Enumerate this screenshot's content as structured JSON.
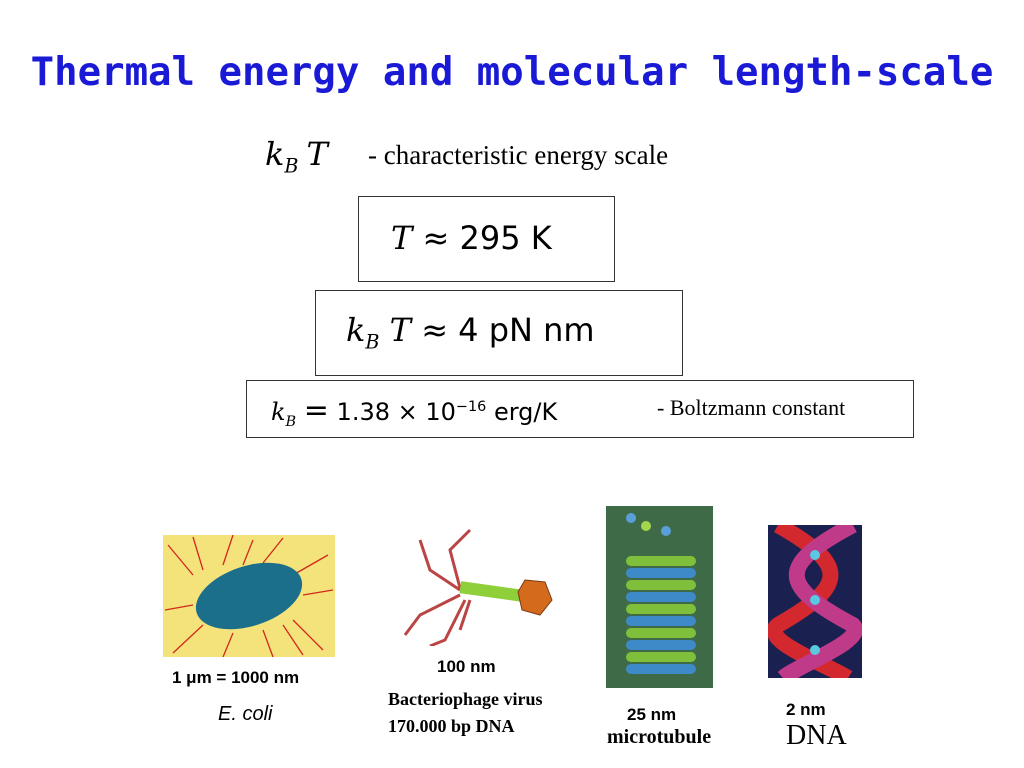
{
  "title": "Thermal energy and molecular length-scale",
  "energy_scale": {
    "k": "k",
    "sub": "B",
    "T": "T",
    "note": "- characteristic energy scale"
  },
  "temperature": {
    "T": "T",
    "approx": "≈",
    "value": "295 K"
  },
  "thermal_energy": {
    "k": "k",
    "sub": "B",
    "T": "T",
    "approx": "≈",
    "value": "4 pN nm"
  },
  "boltzmann": {
    "k": "k",
    "sub": "B",
    "eq": "=",
    "mantissa": "1.38",
    "times": "×",
    "base": "10",
    "exponent": "−16",
    "unit": "erg/K",
    "note": "- Boltzmann constant"
  },
  "examples": [
    {
      "size": "1 μm = 1000 nm",
      "name": "E. coli"
    },
    {
      "size": "100 nm",
      "name": "Bacteriophage virus",
      "detail": "170.000 bp DNA"
    },
    {
      "size": "25 nm",
      "name": "microtubule"
    },
    {
      "size": "2 nm",
      "name": "DNA"
    }
  ]
}
